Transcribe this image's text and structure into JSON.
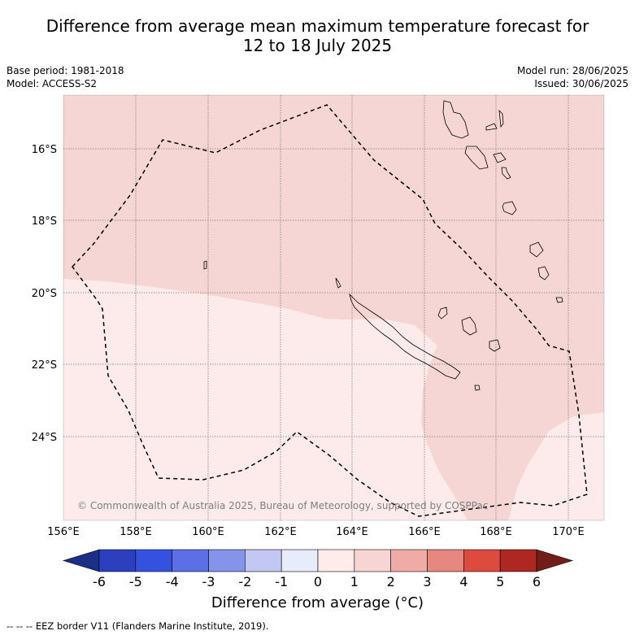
{
  "title": {
    "line1": "Difference from average mean maximum temperature forecast for",
    "line2": "12 to 18 July 2025"
  },
  "meta": {
    "base_period": "Base period: 1981-2018",
    "model": "Model: ACCESS-S2",
    "model_run": "Model run: 28/06/2025",
    "issued": "Issued: 30/06/2025"
  },
  "map": {
    "lon_labels": [
      "156°E",
      "158°E",
      "160°E",
      "162°E",
      "164°E",
      "166°E",
      "168°E",
      "170°E"
    ],
    "lat_labels": [
      "16°S",
      "18°S",
      "20°S",
      "22°S",
      "24°S"
    ],
    "copyright": "© Commonwealth of Australia 2025, Bureau of Meteorology, supported by COSPPac",
    "colors": {
      "anom_1_2": "#f5d6d4",
      "anom_0_1": "#fcebea",
      "grid": "#7a7a7a",
      "coast": "#000000",
      "eez": "#000000"
    }
  },
  "colorbar": {
    "ticks": [
      "-6",
      "-5",
      "-4",
      "-3",
      "-2",
      "-1",
      "0",
      "1",
      "2",
      "3",
      "4",
      "5",
      "6"
    ],
    "colors": [
      "#1c2f86",
      "#2c3fbe",
      "#3451e0",
      "#5b6fe6",
      "#8494ea",
      "#c2c8f3",
      "#e7ebfa",
      "#fdecea",
      "#f6d5d2",
      "#f0aba7",
      "#e78880",
      "#dd4a3e",
      "#ae2720",
      "#731d17"
    ],
    "label": "Difference from average (°C)"
  },
  "footer": "--  --  -- EEZ border V11 (Flanders Marine Institute, 2019)."
}
